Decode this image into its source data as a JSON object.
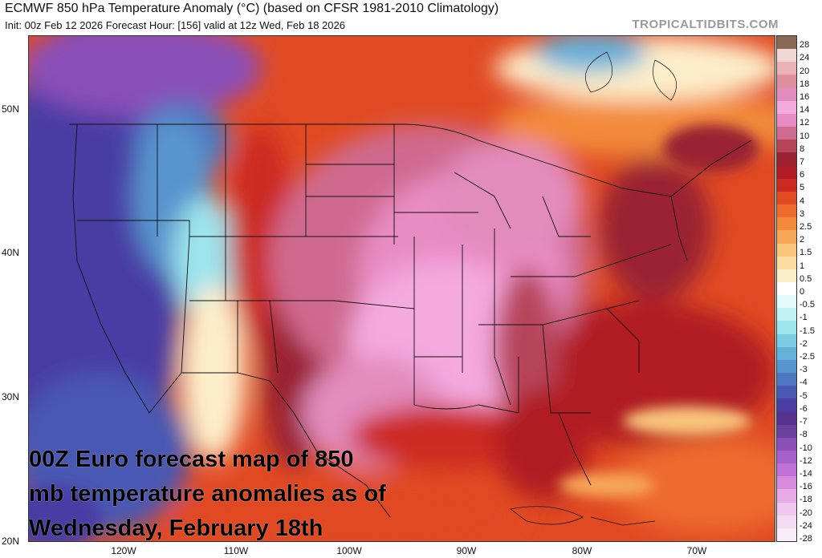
{
  "header": {
    "title": "ECMWF 850 hPa Temperature Anomaly (°C) (based on CFSR 1981-2010 Climatology)",
    "subtitle": "Init: 00z Feb 12 2026   Forecast Hour: [156]   valid at 12z Wed, Feb 18 2026",
    "watermark": "TROPICALTIDBITS.COM"
  },
  "map": {
    "lat_labels": [
      "50N",
      "40N",
      "30N",
      "20N"
    ],
    "lon_labels": [
      "120W",
      "110W",
      "100W",
      "90W",
      "80W",
      "70W"
    ]
  },
  "colorbar": {
    "labels": [
      "28",
      "24",
      "20",
      "18",
      "16",
      "14",
      "12",
      "10",
      "8",
      "7",
      "6",
      "5",
      "4",
      "3",
      "2.5",
      "2",
      "1.5",
      "1",
      "0.5",
      "0",
      "-0.5",
      "-1",
      "-1.5",
      "-2",
      "-2.5",
      "-3",
      "-4",
      "-5",
      "-6",
      "-7",
      "-8",
      "-10",
      "-12",
      "-14",
      "-16",
      "-18",
      "-20",
      "-24",
      "-28"
    ],
    "colors": [
      "#8a6a55",
      "#f1d6d6",
      "#e9b3b4",
      "#e08f9f",
      "#e28bbd",
      "#f4a9df",
      "#e88cc4",
      "#cf6b8f",
      "#b7455a",
      "#9a2231",
      "#b01c23",
      "#cc2a20",
      "#e04a23",
      "#ee6a2f",
      "#f38a3b",
      "#f6a858",
      "#f9c57c",
      "#fbdda2",
      "#fdeecb",
      "#ffffff",
      "#e3fbfb",
      "#c0f1f4",
      "#9de4ec",
      "#7bcde3",
      "#64b1da",
      "#5894ce",
      "#4f76c1",
      "#4a58b3",
      "#4a3ea4",
      "#56338f",
      "#6a3f9d",
      "#8a50b8",
      "#a560c9",
      "#c271d6",
      "#d88bdd",
      "#e7aae6",
      "#eec8ee",
      "#f3dbf2",
      "#f7ebf7"
    ]
  },
  "caption": {
    "text": "00Z Euro forecast map of 850\nmb temperature anomalies as of\nWednesday, February 18th"
  }
}
